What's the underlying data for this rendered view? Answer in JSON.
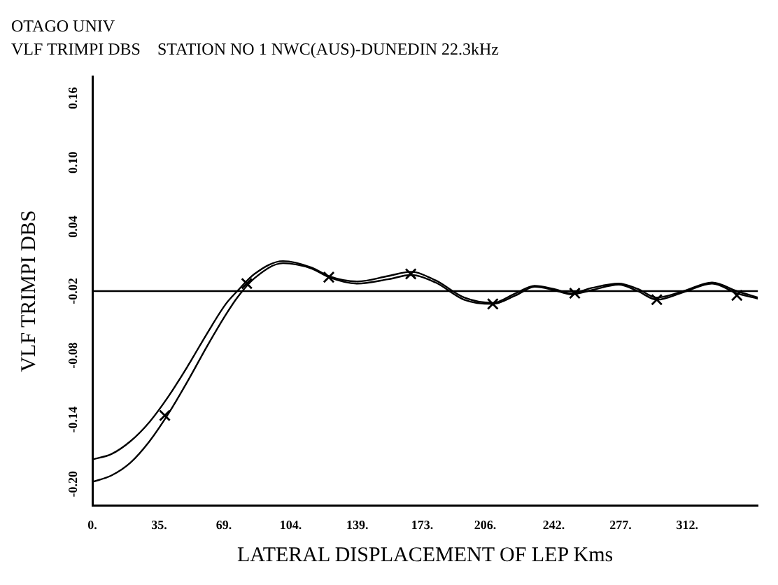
{
  "chart_data": {
    "type": "line",
    "title": "OTAGO UNIV",
    "subtitle": "VLF TRIMPI DBS    STATION NO 1 NWC(AUS)-DUNEDIN 22.3kHz",
    "xlabel": "LATERAL DISPLACEMENT OF LEP Kms",
    "ylabel": "VLF TRIMPI DBS",
    "xlim": [
      0,
      349
    ],
    "ylim": [
      -0.22,
      0.18
    ],
    "xticks": [
      {
        "value": 0,
        "label": "0."
      },
      {
        "value": 35,
        "label": "35."
      },
      {
        "value": 69,
        "label": "69."
      },
      {
        "value": 104,
        "label": "104."
      },
      {
        "value": 139,
        "label": "139."
      },
      {
        "value": 173,
        "label": "173."
      },
      {
        "value": 206,
        "label": "206."
      },
      {
        "value": 242,
        "label": "242."
      },
      {
        "value": 277,
        "label": "277."
      },
      {
        "value": 312,
        "label": "312."
      }
    ],
    "yticks": [
      {
        "value": -0.2,
        "label": "-0.20"
      },
      {
        "value": -0.14,
        "label": "-0.14"
      },
      {
        "value": -0.08,
        "label": "-0.08"
      },
      {
        "value": -0.02,
        "label": "-0.02"
      },
      {
        "value": 0.04,
        "label": "0.04"
      },
      {
        "value": 0.1,
        "label": "0.10"
      },
      {
        "value": 0.16,
        "label": "0.16"
      }
    ],
    "grid": false,
    "legend": false,
    "line_style": "solid",
    "ref_lines": [
      {
        "axis": "y",
        "value": -0.02,
        "color": "#000000"
      }
    ],
    "series": [
      {
        "color": "#000000",
        "marker": "none",
        "x": [
          0,
          10,
          20,
          30,
          40,
          50,
          60,
          70,
          76,
          85,
          100,
          115,
          124,
          139,
          155,
          167,
          180,
          195,
          210,
          222,
          232,
          242,
          251,
          262,
          276,
          286,
          296,
          310,
          325,
          338,
          349
        ],
        "values": [
          -0.177,
          -0.172,
          -0.16,
          -0.142,
          -0.118,
          -0.09,
          -0.06,
          -0.032,
          -0.02,
          -0.004,
          0.008,
          0.002,
          -0.006,
          -0.011,
          -0.006,
          -0.002,
          -0.01,
          -0.026,
          -0.031,
          -0.022,
          -0.015,
          -0.018,
          -0.022,
          -0.017,
          -0.013,
          -0.018,
          -0.026,
          -0.02,
          -0.012,
          -0.02,
          -0.026
        ]
      },
      {
        "color": "#000000",
        "marker": "none",
        "x": [
          0,
          10,
          20,
          30,
          40,
          50,
          60,
          70,
          76,
          85,
          100,
          115,
          124,
          139,
          155,
          167,
          180,
          195,
          210,
          222,
          232,
          242,
          251,
          262,
          276,
          286,
          296,
          310,
          325,
          338,
          349
        ],
        "values": [
          -0.198,
          -0.192,
          -0.18,
          -0.16,
          -0.134,
          -0.104,
          -0.072,
          -0.042,
          -0.026,
          -0.008,
          0.006,
          0.001,
          -0.007,
          -0.013,
          -0.009,
          -0.005,
          -0.012,
          -0.028,
          -0.032,
          -0.024,
          -0.016,
          -0.019,
          -0.023,
          -0.019,
          -0.014,
          -0.02,
          -0.028,
          -0.021,
          -0.013,
          -0.022,
          -0.027
        ]
      },
      {
        "type": "scatter",
        "color": "#000000",
        "marker": "cross",
        "x": [
          38,
          81,
          124,
          167,
          210,
          253,
          296,
          338
        ],
        "values": [
          -0.136,
          -0.013,
          -0.007,
          -0.004,
          -0.032,
          -0.022,
          -0.028,
          -0.024
        ]
      }
    ]
  }
}
